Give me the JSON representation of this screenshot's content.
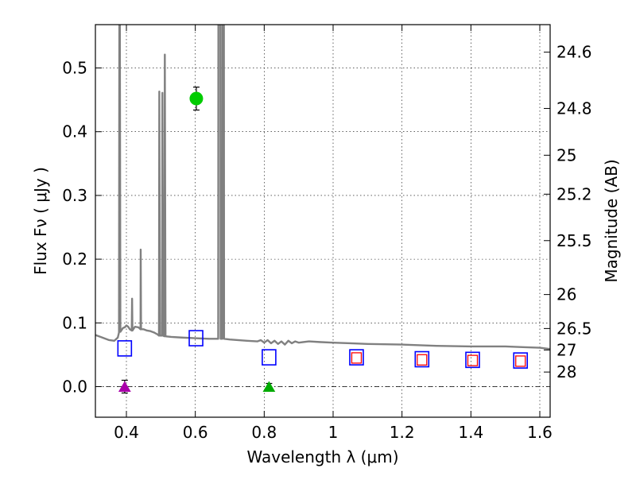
{
  "chart_data": {
    "type": "scatter",
    "xlabel": "Wavelength  λ (μm)",
    "ylabel": "Flux  Fν  ( μJy )",
    "ylabel_right": "Magnitude (AB)",
    "xlim": [
      0.31,
      1.63
    ],
    "ylim": [
      -0.048,
      0.568
    ],
    "grid": true,
    "x_ticks": [
      {
        "value": 0.4,
        "label": "0.4"
      },
      {
        "value": 0.6,
        "label": "0.6"
      },
      {
        "value": 0.8,
        "label": "0.8"
      },
      {
        "value": 1.0,
        "label": "1"
      },
      {
        "value": 1.2,
        "label": "1.2"
      },
      {
        "value": 1.4,
        "label": "1.4"
      },
      {
        "value": 1.6,
        "label": "1.6"
      }
    ],
    "y_ticks": [
      {
        "value": 0.0,
        "label": "0.0"
      },
      {
        "value": 0.1,
        "label": "0.1"
      },
      {
        "value": 0.2,
        "label": "0.2"
      },
      {
        "value": 0.3,
        "label": "0.3"
      },
      {
        "value": 0.4,
        "label": "0.4"
      },
      {
        "value": 0.5,
        "label": "0.5"
      }
    ],
    "right_ticks": [
      {
        "flux": 0.5248,
        "label": "24.6"
      },
      {
        "flux": 0.4365,
        "label": "24.8"
      },
      {
        "flux": 0.3631,
        "label": "25"
      },
      {
        "flux": 0.302,
        "label": "25.2"
      },
      {
        "flux": 0.2291,
        "label": "25.5"
      },
      {
        "flux": 0.1445,
        "label": "26"
      },
      {
        "flux": 0.0912,
        "label": "26.5"
      },
      {
        "flux": 0.0575,
        "label": "27"
      },
      {
        "flux": 0.0229,
        "label": "28"
      }
    ],
    "series": [
      {
        "kind": "line",
        "color": "#808080",
        "points": [
          [
            0.31,
            0.081
          ],
          [
            0.33,
            0.077
          ],
          [
            0.35,
            0.073
          ],
          [
            0.365,
            0.072
          ],
          [
            0.375,
            0.077
          ],
          [
            0.3785,
            0.085
          ],
          [
            0.3795,
            0.568
          ],
          [
            0.381,
            0.568
          ],
          [
            0.3825,
            0.086
          ],
          [
            0.385,
            0.088
          ],
          [
            0.39,
            0.092
          ],
          [
            0.395,
            0.093
          ],
          [
            0.4,
            0.096
          ],
          [
            0.405,
            0.094
          ],
          [
            0.41,
            0.09
          ],
          [
            0.4155,
            0.088
          ],
          [
            0.4165,
            0.138
          ],
          [
            0.4175,
            0.088
          ],
          [
            0.425,
            0.094
          ],
          [
            0.435,
            0.093
          ],
          [
            0.441,
            0.09
          ],
          [
            0.4415,
            0.215
          ],
          [
            0.4425,
            0.09
          ],
          [
            0.45,
            0.09
          ],
          [
            0.46,
            0.088
          ],
          [
            0.47,
            0.087
          ],
          [
            0.48,
            0.085
          ],
          [
            0.49,
            0.082
          ],
          [
            0.4945,
            0.08
          ],
          [
            0.4955,
            0.463
          ],
          [
            0.4975,
            0.08
          ],
          [
            0.5035,
            0.08
          ],
          [
            0.5045,
            0.461
          ],
          [
            0.5065,
            0.08
          ],
          [
            0.5105,
            0.079
          ],
          [
            0.5115,
            0.521
          ],
          [
            0.5135,
            0.079
          ],
          [
            0.53,
            0.078
          ],
          [
            0.56,
            0.077
          ],
          [
            0.6,
            0.076
          ],
          [
            0.64,
            0.075
          ],
          [
            0.66,
            0.075
          ],
          [
            0.6665,
            0.075
          ],
          [
            0.667,
            0.568
          ],
          [
            0.673,
            0.568
          ],
          [
            0.6735,
            0.075
          ],
          [
            0.6785,
            0.075
          ],
          [
            0.679,
            0.568
          ],
          [
            0.683,
            0.568
          ],
          [
            0.6835,
            0.075
          ],
          [
            0.7,
            0.074
          ],
          [
            0.75,
            0.072
          ],
          [
            0.78,
            0.071
          ],
          [
            0.79,
            0.073
          ],
          [
            0.8,
            0.069
          ],
          [
            0.81,
            0.073
          ],
          [
            0.82,
            0.068
          ],
          [
            0.83,
            0.072
          ],
          [
            0.84,
            0.067
          ],
          [
            0.85,
            0.071
          ],
          [
            0.86,
            0.066
          ],
          [
            0.87,
            0.072
          ],
          [
            0.88,
            0.068
          ],
          [
            0.89,
            0.071
          ],
          [
            0.9,
            0.069
          ],
          [
            0.93,
            0.071
          ],
          [
            0.96,
            0.07
          ],
          [
            1.0,
            0.069
          ],
          [
            1.05,
            0.068
          ],
          [
            1.1,
            0.067
          ],
          [
            1.2,
            0.066
          ],
          [
            1.3,
            0.064
          ],
          [
            1.4,
            0.063
          ],
          [
            1.5,
            0.063
          ],
          [
            1.55,
            0.062
          ],
          [
            1.6,
            0.061
          ],
          [
            1.63,
            0.059
          ]
        ]
      },
      {
        "kind": "marker",
        "shape": "circle",
        "color": "#00cc00",
        "points": [
          {
            "x": 0.603,
            "y": 0.452,
            "err": 0.018
          }
        ]
      },
      {
        "kind": "marker",
        "shape": "square-open",
        "color": "#0000ff",
        "points": [
          {
            "x": 0.395,
            "y": 0.06
          },
          {
            "x": 0.602,
            "y": 0.076
          },
          {
            "x": 0.814,
            "y": 0.046
          },
          {
            "x": 1.068,
            "y": 0.046
          },
          {
            "x": 1.258,
            "y": 0.043
          },
          {
            "x": 1.405,
            "y": 0.042
          },
          {
            "x": 1.544,
            "y": 0.041
          }
        ]
      },
      {
        "kind": "marker",
        "shape": "square-small-open",
        "color": "#ff0000",
        "points": [
          {
            "x": 1.068,
            "y": 0.045
          },
          {
            "x": 1.258,
            "y": 0.042
          },
          {
            "x": 1.405,
            "y": 0.041
          },
          {
            "x": 1.544,
            "y": 0.04
          }
        ]
      },
      {
        "kind": "marker",
        "shape": "triangle",
        "color": "#aa00aa",
        "points": [
          {
            "x": 0.395,
            "y": 0.0,
            "err": 0.01
          }
        ]
      },
      {
        "kind": "marker",
        "shape": "triangle",
        "color": "#00aa00",
        "points": [
          {
            "x": 0.814,
            "y": 0.0,
            "err": 0.005
          }
        ]
      }
    ]
  }
}
